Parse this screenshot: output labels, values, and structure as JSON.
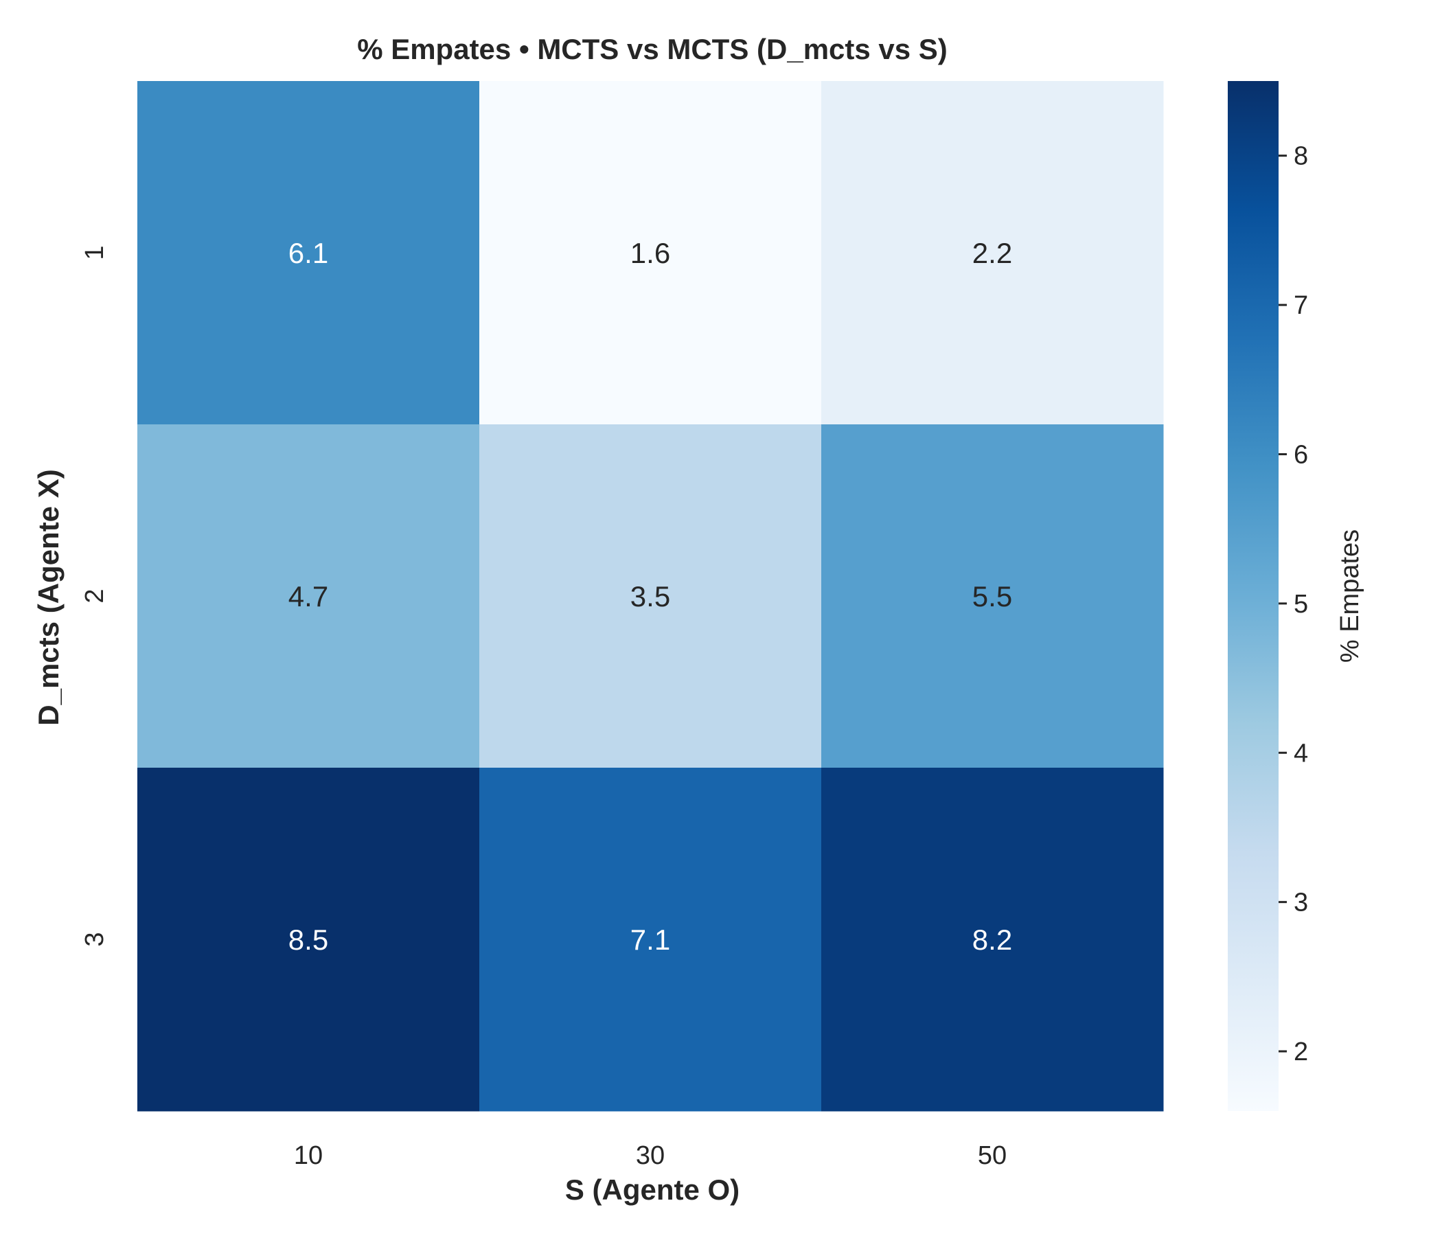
{
  "chart_data": {
    "type": "heatmap",
    "title": "% Empates • MCTS vs MCTS (D_mcts vs S)",
    "xlabel": "S (Agente O)",
    "ylabel": "D_mcts (Agente X)",
    "x_categories": [
      "10",
      "30",
      "50"
    ],
    "y_categories": [
      "1",
      "2",
      "3"
    ],
    "values": [
      [
        6.1,
        1.6,
        2.2
      ],
      [
        4.7,
        3.5,
        5.5
      ],
      [
        8.5,
        7.1,
        8.2
      ]
    ],
    "value_labels": [
      [
        "6.1",
        "1.6",
        "2.2"
      ],
      [
        "4.7",
        "3.5",
        "5.5"
      ],
      [
        "8.5",
        "7.1",
        "8.2"
      ]
    ],
    "colorbar": {
      "label": "% Empates",
      "range": [
        1.6,
        8.5
      ],
      "ticks": [
        2,
        3,
        4,
        5,
        6,
        7,
        8
      ],
      "colormap": "Blues"
    }
  }
}
